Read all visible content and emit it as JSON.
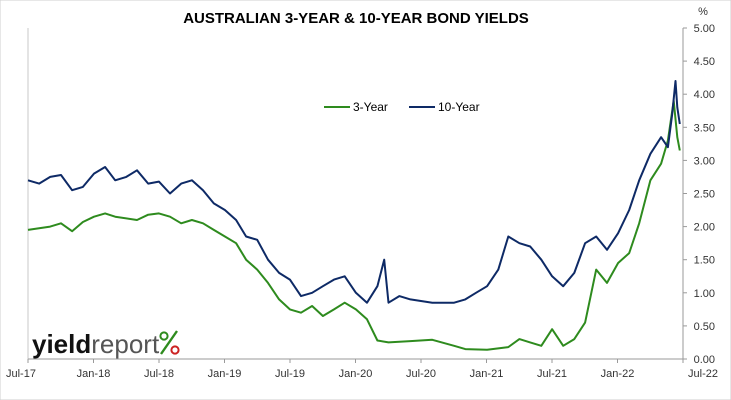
{
  "chart_data": {
    "type": "line",
    "title": "AUSTRALIAN 3-YEAR & 10-YEAR BOND YIELDS",
    "y_unit": "%",
    "ylim": [
      0,
      5
    ],
    "y_ticks": [
      "0.00",
      "0.50",
      "1.00",
      "1.50",
      "2.00",
      "2.50",
      "3.00",
      "3.50",
      "4.00",
      "4.50",
      "5.00"
    ],
    "x_ticks": [
      "Jul-17",
      "Jan-18",
      "Jul-18",
      "Jan-19",
      "Jul-19",
      "Jan-20",
      "Jul-20",
      "Jan-21",
      "Jul-21",
      "Jan-22",
      "Jul-22"
    ],
    "grid": false,
    "legend_position": "upper-middle",
    "series": [
      {
        "name": "3-Year",
        "color": "#2e8b1e",
        "points": [
          [
            "2017-07-01",
            1.95
          ],
          [
            "2017-09-01",
            2.0
          ],
          [
            "2017-10-01",
            2.05
          ],
          [
            "2017-11-01",
            1.93
          ],
          [
            "2017-12-01",
            2.07
          ],
          [
            "2018-01-01",
            2.15
          ],
          [
            "2018-02-01",
            2.2
          ],
          [
            "2018-03-01",
            2.15
          ],
          [
            "2018-05-01",
            2.1
          ],
          [
            "2018-06-01",
            2.18
          ],
          [
            "2018-07-01",
            2.2
          ],
          [
            "2018-08-01",
            2.15
          ],
          [
            "2018-09-01",
            2.05
          ],
          [
            "2018-10-01",
            2.1
          ],
          [
            "2018-11-01",
            2.05
          ],
          [
            "2018-12-01",
            1.95
          ],
          [
            "2019-01-01",
            1.85
          ],
          [
            "2019-02-01",
            1.75
          ],
          [
            "2019-03-01",
            1.5
          ],
          [
            "2019-04-01",
            1.35
          ],
          [
            "2019-05-01",
            1.15
          ],
          [
            "2019-06-01",
            0.9
          ],
          [
            "2019-07-01",
            0.75
          ],
          [
            "2019-08-01",
            0.7
          ],
          [
            "2019-09-01",
            0.8
          ],
          [
            "2019-10-01",
            0.65
          ],
          [
            "2019-11-01",
            0.75
          ],
          [
            "2019-12-01",
            0.85
          ],
          [
            "2020-01-01",
            0.75
          ],
          [
            "2020-02-01",
            0.6
          ],
          [
            "2020-03-01",
            0.28
          ],
          [
            "2020-04-01",
            0.25
          ],
          [
            "2020-06-01",
            0.27
          ],
          [
            "2020-08-01",
            0.29
          ],
          [
            "2020-10-01",
            0.2
          ],
          [
            "2020-11-01",
            0.15
          ],
          [
            "2021-01-01",
            0.14
          ],
          [
            "2021-03-01",
            0.18
          ],
          [
            "2021-04-01",
            0.3
          ],
          [
            "2021-05-01",
            0.25
          ],
          [
            "2021-06-01",
            0.2
          ],
          [
            "2021-07-01",
            0.45
          ],
          [
            "2021-08-01",
            0.2
          ],
          [
            "2021-09-01",
            0.3
          ],
          [
            "2021-10-01",
            0.55
          ],
          [
            "2021-11-01",
            1.35
          ],
          [
            "2021-12-01",
            1.15
          ],
          [
            "2022-01-01",
            1.45
          ],
          [
            "2022-02-01",
            1.6
          ],
          [
            "2022-03-01",
            2.05
          ],
          [
            "2022-04-01",
            2.7
          ],
          [
            "2022-05-01",
            2.95
          ],
          [
            "2022-05-20",
            3.3
          ],
          [
            "2022-06-05",
            3.9
          ],
          [
            "2022-06-15",
            3.35
          ],
          [
            "2022-06-22",
            3.15
          ]
        ]
      },
      {
        "name": "10-Year",
        "color": "#0e2a66",
        "points": [
          [
            "2017-07-01",
            2.7
          ],
          [
            "2017-08-01",
            2.65
          ],
          [
            "2017-09-01",
            2.75
          ],
          [
            "2017-10-01",
            2.78
          ],
          [
            "2017-11-01",
            2.55
          ],
          [
            "2017-12-01",
            2.6
          ],
          [
            "2018-01-01",
            2.8
          ],
          [
            "2018-02-01",
            2.9
          ],
          [
            "2018-03-01",
            2.7
          ],
          [
            "2018-04-01",
            2.75
          ],
          [
            "2018-05-01",
            2.85
          ],
          [
            "2018-06-01",
            2.65
          ],
          [
            "2018-07-01",
            2.68
          ],
          [
            "2018-08-01",
            2.5
          ],
          [
            "2018-09-01",
            2.65
          ],
          [
            "2018-10-01",
            2.7
          ],
          [
            "2018-11-01",
            2.55
          ],
          [
            "2018-12-01",
            2.35
          ],
          [
            "2019-01-01",
            2.25
          ],
          [
            "2019-02-01",
            2.1
          ],
          [
            "2019-03-01",
            1.85
          ],
          [
            "2019-04-01",
            1.8
          ],
          [
            "2019-05-01",
            1.5
          ],
          [
            "2019-06-01",
            1.3
          ],
          [
            "2019-07-01",
            1.2
          ],
          [
            "2019-08-01",
            0.95
          ],
          [
            "2019-09-01",
            1.0
          ],
          [
            "2019-10-01",
            1.1
          ],
          [
            "2019-11-01",
            1.2
          ],
          [
            "2019-12-01",
            1.25
          ],
          [
            "2020-01-01",
            1.0
          ],
          [
            "2020-02-01",
            0.85
          ],
          [
            "2020-03-01",
            1.1
          ],
          [
            "2020-03-20",
            1.5
          ],
          [
            "2020-04-01",
            0.85
          ],
          [
            "2020-05-01",
            0.95
          ],
          [
            "2020-06-01",
            0.9
          ],
          [
            "2020-08-01",
            0.85
          ],
          [
            "2020-10-01",
            0.85
          ],
          [
            "2020-11-01",
            0.9
          ],
          [
            "2020-12-01",
            1.0
          ],
          [
            "2021-01-01",
            1.1
          ],
          [
            "2021-02-01",
            1.35
          ],
          [
            "2021-03-01",
            1.85
          ],
          [
            "2021-04-01",
            1.75
          ],
          [
            "2021-05-01",
            1.7
          ],
          [
            "2021-06-01",
            1.5
          ],
          [
            "2021-07-01",
            1.25
          ],
          [
            "2021-08-01",
            1.1
          ],
          [
            "2021-09-01",
            1.3
          ],
          [
            "2021-10-01",
            1.75
          ],
          [
            "2021-11-01",
            1.85
          ],
          [
            "2021-12-01",
            1.65
          ],
          [
            "2022-01-01",
            1.9
          ],
          [
            "2022-02-01",
            2.25
          ],
          [
            "2022-03-01",
            2.7
          ],
          [
            "2022-04-01",
            3.1
          ],
          [
            "2022-05-01",
            3.35
          ],
          [
            "2022-05-20",
            3.2
          ],
          [
            "2022-06-01",
            3.7
          ],
          [
            "2022-06-10",
            4.2
          ],
          [
            "2022-06-15",
            3.8
          ],
          [
            "2022-06-22",
            3.55
          ]
        ]
      }
    ]
  },
  "logo": {
    "word_yield": "yield",
    "word_report": "report",
    "symbol": "%",
    "color_yield": "#111111",
    "color_report": "#555555",
    "color_symbol_upper": "#2e8b1e",
    "color_symbol_lower": "#cc2222"
  }
}
